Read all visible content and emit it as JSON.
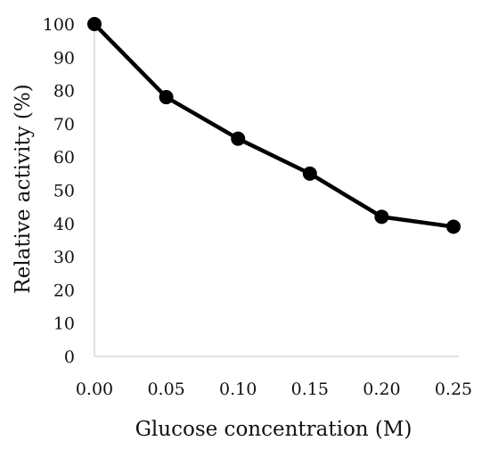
{
  "chart_data": {
    "type": "line",
    "title": "",
    "xlabel": "Glucose concentration (M)",
    "ylabel": "Relative activity (%)",
    "x": [
      0.0,
      0.05,
      0.1,
      0.15,
      0.2,
      0.25
    ],
    "series": [
      {
        "values": [
          100,
          78,
          65.5,
          55,
          42,
          39
        ]
      }
    ],
    "xlim": [
      0,
      0.25
    ],
    "ylim": [
      0,
      100
    ],
    "x_ticks": [
      "0.00",
      "0.05",
      "0.10",
      "0.15",
      "0.20",
      "0.25"
    ],
    "y_ticks": [
      "0",
      "10",
      "20",
      "30",
      "40",
      "50",
      "60",
      "70",
      "80",
      "90",
      "100"
    ],
    "grid": false,
    "legend": "none",
    "colors": {
      "line": "#000000",
      "marker": "#000000",
      "axis": "#d9d9d9",
      "text": "#111111"
    }
  }
}
